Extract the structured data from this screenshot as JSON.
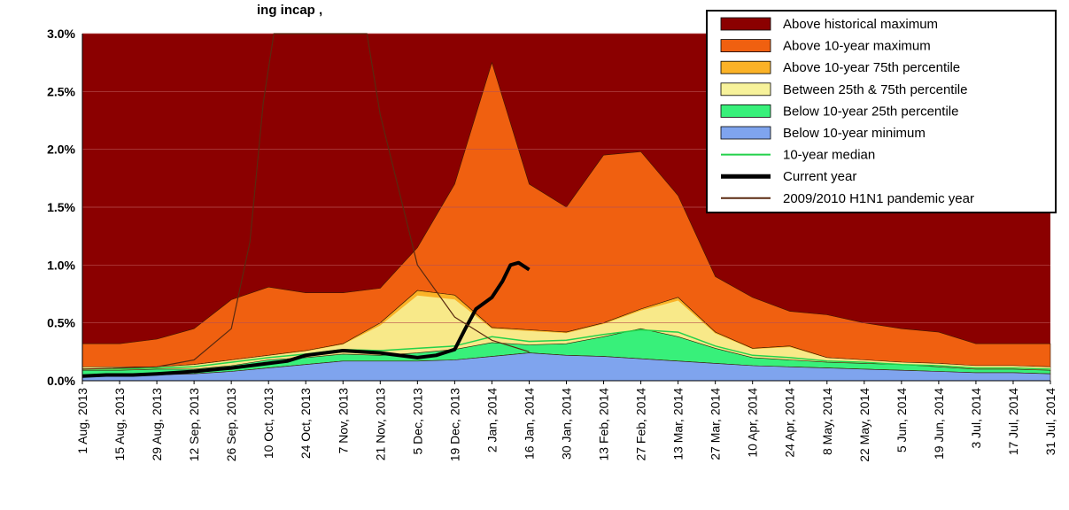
{
  "chart_data": {
    "type": "area",
    "title": "ing incap                              ,",
    "yaxis": {
      "min": 0.0,
      "max": 3.0,
      "unit": "%",
      "tick_labels": [
        "0.0%",
        "0.5%",
        "1.0%",
        "1.5%",
        "2.0%",
        "2.5%",
        "3.0%"
      ],
      "tick_values": [
        0.0,
        0.5,
        1.0,
        1.5,
        2.0,
        2.5,
        3.0
      ],
      "grid": true
    },
    "xaxis": {
      "start": "2013-08-01",
      "end": "2014-07-31",
      "tick_labels": [
        "1 Aug, 2013",
        "15 Aug, 2013",
        "29 Aug, 2013",
        "12 Sep, 2013",
        "26 Sep, 2013",
        "10 Oct, 2013",
        "24 Oct, 2013",
        "7 Nov, 2013",
        "21 Nov, 2013",
        "5 Dec, 2013",
        "19 Dec, 2013",
        "2 Jan, 2014",
        "16 Jan, 2014",
        "30 Jan, 2014",
        "13 Feb, 2014",
        "27 Feb, 2014",
        "13 Mar, 2014",
        "27 Mar, 2014",
        "10 Apr, 2014",
        "24 Apr, 2014",
        "8 May, 2014",
        "22 May, 2014",
        "5 Jun, 2014",
        "19 Jun, 2014",
        "3 Jul, 2014",
        "17 Jul, 2014",
        "31 Jul, 2014"
      ],
      "tick_dates": [
        "2013-08-01",
        "2013-08-15",
        "2013-08-29",
        "2013-09-12",
        "2013-09-26",
        "2013-10-10",
        "2013-10-24",
        "2013-11-07",
        "2013-11-21",
        "2013-12-05",
        "2013-12-19",
        "2014-01-02",
        "2014-01-16",
        "2014-01-30",
        "2014-02-13",
        "2014-02-27",
        "2014-03-13",
        "2014-03-27",
        "2014-04-10",
        "2014-04-24",
        "2014-05-08",
        "2014-05-22",
        "2014-06-05",
        "2014-06-19",
        "2014-07-03",
        "2014-07-17",
        "2014-07-31"
      ]
    },
    "legend": {
      "position": "top-right",
      "items": [
        {
          "label": "Above historical maximum",
          "color": "#8b0000",
          "kind": "box"
        },
        {
          "label": "Above 10-year maximum",
          "color": "#f06010",
          "kind": "box"
        },
        {
          "label": "Above 10-year 75th percentile",
          "color": "#fbb227",
          "kind": "box"
        },
        {
          "label": "Between 25th & 75th percentile",
          "color": "#f7f29b",
          "kind": "box"
        },
        {
          "label": "Below 10-year 25th percentile",
          "color": "#38f07a",
          "kind": "box"
        },
        {
          "label": "Below 10-year minimum",
          "color": "#7fa4ee",
          "kind": "box"
        },
        {
          "label": "10-year median",
          "color": "#23d14a",
          "kind": "line"
        },
        {
          "label": "Current year",
          "color": "#000000",
          "kind": "thickline"
        },
        {
          "label": "2009/2010 H1N1 pandemic year",
          "color": "#5a2a10",
          "kind": "line"
        }
      ]
    },
    "bands": {
      "dates": [
        "2013-08-01",
        "2013-08-15",
        "2013-08-29",
        "2013-09-12",
        "2013-09-26",
        "2013-10-10",
        "2013-10-24",
        "2013-11-07",
        "2013-11-21",
        "2013-12-05",
        "2013-12-19",
        "2014-01-02",
        "2014-01-16",
        "2014-01-30",
        "2014-02-13",
        "2014-02-27",
        "2014-03-13",
        "2014-03-27",
        "2014-04-10",
        "2014-04-24",
        "2014-05-08",
        "2014-05-22",
        "2014-06-05",
        "2014-06-19",
        "2014-07-03",
        "2014-07-17",
        "2014-07-31"
      ],
      "max10": [
        0.32,
        0.32,
        0.36,
        0.45,
        0.7,
        0.81,
        0.76,
        0.76,
        0.8,
        1.15,
        1.7,
        2.75,
        1.7,
        1.5,
        1.95,
        1.98,
        1.6,
        0.9,
        0.72,
        0.6,
        0.57,
        0.5,
        0.45,
        0.42,
        0.32,
        0.32,
        0.32
      ],
      "p75": [
        0.12,
        0.12,
        0.12,
        0.14,
        0.18,
        0.22,
        0.26,
        0.32,
        0.5,
        0.78,
        0.74,
        0.46,
        0.44,
        0.42,
        0.5,
        0.62,
        0.72,
        0.42,
        0.28,
        0.3,
        0.2,
        0.18,
        0.16,
        0.15,
        0.13,
        0.13,
        0.12
      ],
      "p25": [
        0.09,
        0.09,
        0.1,
        0.1,
        0.13,
        0.18,
        0.2,
        0.23,
        0.22,
        0.24,
        0.27,
        0.33,
        0.31,
        0.32,
        0.38,
        0.45,
        0.38,
        0.28,
        0.2,
        0.18,
        0.16,
        0.15,
        0.14,
        0.12,
        0.1,
        0.1,
        0.09
      ],
      "min10": [
        0.04,
        0.04,
        0.05,
        0.06,
        0.08,
        0.11,
        0.14,
        0.17,
        0.17,
        0.17,
        0.18,
        0.21,
        0.24,
        0.22,
        0.21,
        0.19,
        0.17,
        0.15,
        0.13,
        0.12,
        0.11,
        0.1,
        0.09,
        0.08,
        0.07,
        0.07,
        0.06
      ],
      "median": [
        0.1,
        0.1,
        0.11,
        0.12,
        0.16,
        0.2,
        0.23,
        0.27,
        0.26,
        0.28,
        0.3,
        0.38,
        0.34,
        0.35,
        0.4,
        0.44,
        0.42,
        0.3,
        0.22,
        0.2,
        0.17,
        0.16,
        0.14,
        0.13,
        0.11,
        0.11,
        0.1
      ]
    },
    "series": [
      {
        "name": "Current year",
        "x": [
          "2013-08-01",
          "2013-08-10",
          "2013-08-20",
          "2013-08-29",
          "2013-09-12",
          "2013-09-26",
          "2013-10-10",
          "2013-10-17",
          "2013-10-24",
          "2013-11-07",
          "2013-11-21",
          "2013-12-05",
          "2013-12-12",
          "2013-12-19",
          "2013-12-23",
          "2013-12-27",
          "2014-01-02",
          "2014-01-06",
          "2014-01-09",
          "2014-01-12",
          "2014-01-16"
        ],
        "y": [
          0.04,
          0.05,
          0.05,
          0.06,
          0.08,
          0.11,
          0.15,
          0.17,
          0.22,
          0.26,
          0.24,
          0.2,
          0.22,
          0.27,
          0.45,
          0.62,
          0.72,
          0.86,
          1.0,
          1.02,
          0.96
        ]
      },
      {
        "name": "2009/2010 H1N1 pandemic year",
        "x": [
          "2013-08-01",
          "2013-08-29",
          "2013-09-12",
          "2013-09-26",
          "2013-10-03",
          "2013-10-08",
          "2013-10-12",
          "2013-11-16",
          "2013-11-21",
          "2013-12-05",
          "2013-12-19",
          "2014-01-02",
          "2014-01-16"
        ],
        "y": [
          0.1,
          0.12,
          0.18,
          0.45,
          1.2,
          2.4,
          3.0,
          3.0,
          2.3,
          1.0,
          0.55,
          0.35,
          0.25
        ]
      }
    ]
  }
}
